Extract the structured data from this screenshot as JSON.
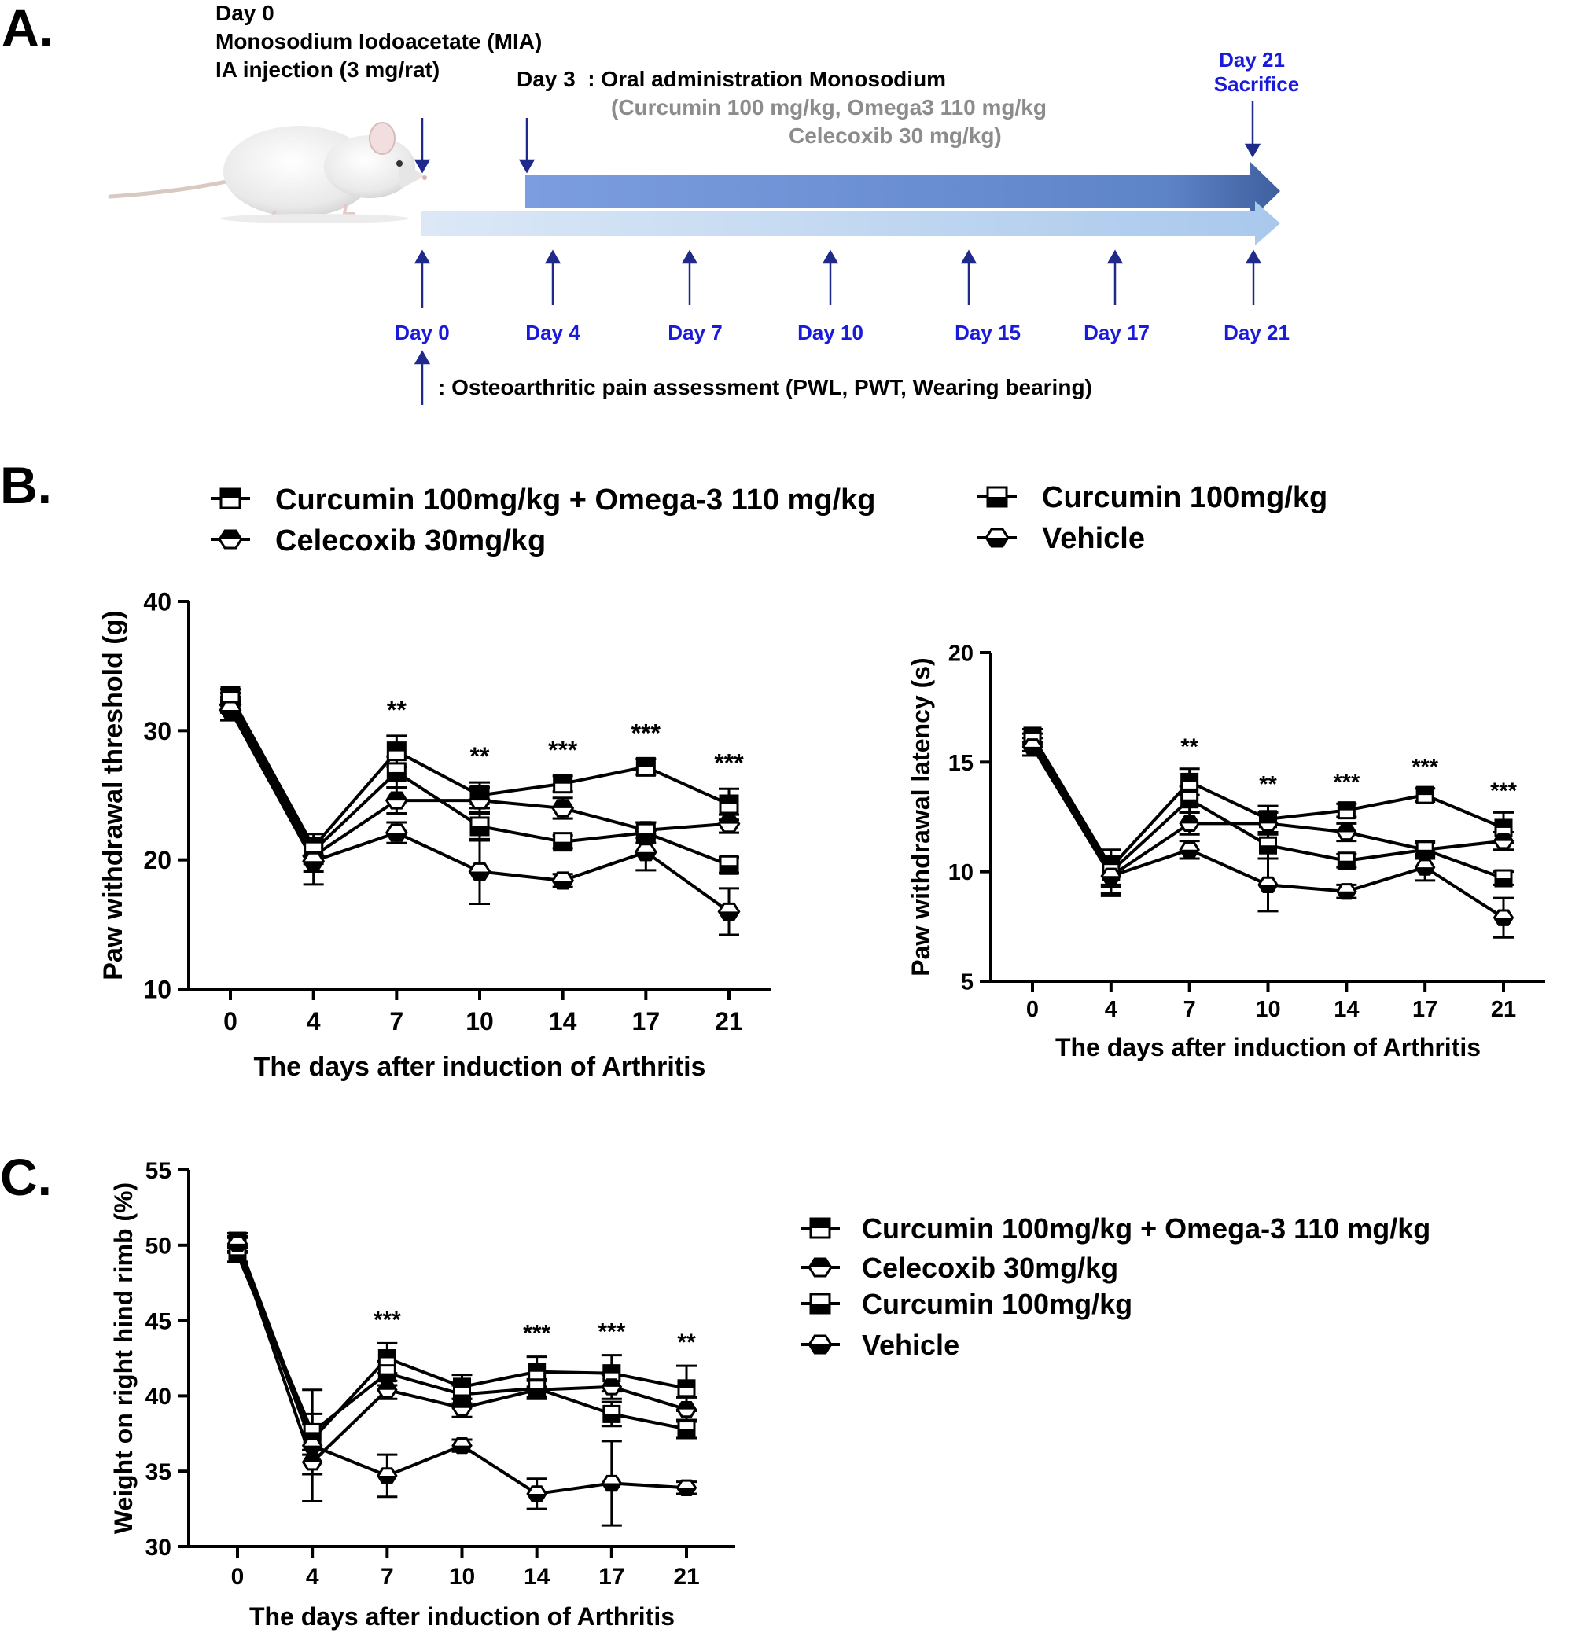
{
  "panel_a": {
    "label": "A.",
    "injection": {
      "line1": "Day 0",
      "line2": "Monosodium Iodoacetate (MIA)",
      "line3": "IA injection (3 mg/rat)"
    },
    "oral": {
      "line1": "Day 3  : Oral administration Monosodium",
      "line2": "(Curcumin 100 mg/kg, Omega3 110 mg/kg",
      "line3": "Celecoxib 30 mg/kg)"
    },
    "sacrifice": {
      "line1": "Day 21",
      "line2": "Sacrifice"
    },
    "timepoints": [
      "Day 0",
      "Day 4",
      "Day 7",
      "Day 10",
      "Day 15",
      "Day 17",
      "Day 21"
    ],
    "assessment_note": ": Osteoarthritic pain assessment (PWL, PWT, Wearing bearing)",
    "colors": {
      "blue_text": "#1a1adb",
      "gray_text": "#8c8c8c",
      "arrow_dark": "#5e84c8",
      "arrow_light": "#bcd4ee",
      "marker_arrow": "#1f2a8a"
    }
  },
  "panel_b": {
    "label": "B.",
    "legend": [
      "Curcumin 100mg/kg + Omega-3 110 mg/kg",
      "Celecoxib 30mg/kg",
      "Curcumin 100mg/kg",
      "Vehicle"
    ]
  },
  "panel_c": {
    "label": "C.",
    "legend": [
      "Curcumin 100mg/kg + Omega-3 110 mg/kg",
      "Celecoxib 30mg/kg",
      "Curcumin 100mg/kg",
      "Vehicle"
    ]
  },
  "chart_data": [
    {
      "id": "pwt",
      "type": "line",
      "title": "",
      "xlabel": "The days after induction of Arthritis",
      "ylabel": "Paw withdrawal threshold (g)",
      "categories": [
        "0",
        "4",
        "7",
        "10",
        "14",
        "17",
        "21"
      ],
      "ylim": [
        10,
        40
      ],
      "yticks": [
        10,
        20,
        30,
        40
      ],
      "series": [
        {
          "name": "Curcumin 100mg/kg + Omega-3 110 mg/kg",
          "marker": "square-top-filled",
          "values": [
            32.7,
            21.0,
            28.4,
            25.0,
            25.9,
            27.2,
            24.3
          ],
          "errors": [
            0.5,
            1.0,
            1.2,
            1.0,
            0.6,
            0.6,
            1.2
          ]
        },
        {
          "name": "Celecoxib 30mg/kg",
          "marker": "hexagon-top-filled",
          "values": [
            32.0,
            20.3,
            24.6,
            24.6,
            24.0,
            22.3,
            22.8
          ],
          "errors": [
            0.6,
            1.2,
            1.0,
            1.0,
            0.8,
            0.6,
            0.7
          ]
        },
        {
          "name": "Curcumin 100mg/kg",
          "marker": "square-bottom-filled",
          "values": [
            32.3,
            20.7,
            26.8,
            22.6,
            21.4,
            22.1,
            19.6
          ],
          "errors": [
            0.6,
            1.0,
            1.2,
            1.1,
            0.5,
            0.8,
            0.6
          ]
        },
        {
          "name": "Vehicle",
          "marker": "hexagon-bottom-filled",
          "values": [
            31.6,
            19.9,
            22.1,
            19.1,
            18.4,
            20.6,
            16.0
          ],
          "errors": [
            0.8,
            1.8,
            0.8,
            2.5,
            0.5,
            1.4,
            1.8
          ]
        }
      ],
      "annotations": [
        {
          "x": "7",
          "text": "**"
        },
        {
          "x": "10",
          "text": "**"
        },
        {
          "x": "14",
          "text": "***"
        },
        {
          "x": "17",
          "text": "***"
        },
        {
          "x": "21",
          "text": "***"
        }
      ]
    },
    {
      "id": "pwl",
      "type": "line",
      "title": "",
      "xlabel": "The days after induction of Arthritis",
      "ylabel": "Paw withdrawal latency (s)",
      "categories": [
        "0",
        "4",
        "7",
        "10",
        "14",
        "17",
        "21"
      ],
      "ylim": [
        5,
        20
      ],
      "yticks": [
        5,
        10,
        15,
        20
      ],
      "series": [
        {
          "name": "Curcumin 100mg/kg + Omega-3 110 mg/kg",
          "marker": "square-top-filled",
          "values": [
            16.2,
            10.2,
            14.1,
            12.4,
            12.8,
            13.5,
            12.0
          ],
          "errors": [
            0.3,
            0.8,
            0.6,
            0.6,
            0.3,
            0.3,
            0.7
          ]
        },
        {
          "name": "Celecoxib 30mg/kg",
          "marker": "hexagon-top-filled",
          "values": [
            15.8,
            9.8,
            12.2,
            12.2,
            11.8,
            11.0,
            11.4
          ],
          "errors": [
            0.3,
            0.8,
            0.5,
            0.5,
            0.4,
            0.3,
            0.4
          ]
        },
        {
          "name": "Curcumin 100mg/kg",
          "marker": "square-bottom-filled",
          "values": [
            16.0,
            10.0,
            13.3,
            11.2,
            10.5,
            11.0,
            9.7
          ],
          "errors": [
            0.3,
            0.7,
            0.6,
            0.6,
            0.3,
            0.4,
            0.3
          ]
        },
        {
          "name": "Vehicle",
          "marker": "hexagon-bottom-filled",
          "values": [
            15.7,
            9.8,
            11.0,
            9.4,
            9.1,
            10.2,
            7.9
          ],
          "errors": [
            0.4,
            0.9,
            0.4,
            1.2,
            0.3,
            0.6,
            0.9
          ]
        }
      ],
      "annotations": [
        {
          "x": "7",
          "text": "**"
        },
        {
          "x": "10",
          "text": "**"
        },
        {
          "x": "14",
          "text": "***"
        },
        {
          "x": "17",
          "text": "***"
        },
        {
          "x": "21",
          "text": "***"
        }
      ]
    },
    {
      "id": "wb",
      "type": "line",
      "title": "",
      "xlabel": "The days after induction of Arthritis",
      "ylabel": "Weight on right hind rimb (%)",
      "categories": [
        "0",
        "4",
        "7",
        "10",
        "14",
        "17",
        "21"
      ],
      "ylim": [
        30,
        55
      ],
      "yticks": [
        30,
        35,
        40,
        45,
        50,
        55
      ],
      "series": [
        {
          "name": "Curcumin 100mg/kg + Omega-3 110 mg/kg",
          "marker": "square-top-filled",
          "values": [
            50.3,
            37.1,
            42.5,
            40.6,
            41.6,
            41.5,
            40.5
          ],
          "errors": [
            0.5,
            1.0,
            1.0,
            0.8,
            1.0,
            1.2,
            1.5
          ]
        },
        {
          "name": "Celecoxib 30mg/kg",
          "marker": "hexagon-top-filled",
          "values": [
            50.0,
            35.6,
            40.4,
            39.2,
            40.4,
            40.6,
            39.1
          ],
          "errors": [
            0.5,
            0.8,
            0.6,
            0.6,
            0.6,
            0.8,
            0.8
          ]
        },
        {
          "name": "Curcumin 100mg/kg",
          "marker": "square-bottom-filled",
          "values": [
            49.4,
            37.6,
            41.5,
            40.1,
            40.5,
            38.8,
            37.8
          ],
          "errors": [
            0.5,
            1.2,
            0.8,
            0.6,
            0.6,
            0.8,
            0.6
          ]
        },
        {
          "name": "Vehicle",
          "marker": "hexagon-bottom-filled",
          "values": [
            50.1,
            36.7,
            34.7,
            36.7,
            33.5,
            34.2,
            33.9
          ],
          "errors": [
            0.5,
            3.7,
            1.4,
            0.4,
            1.0,
            2.8,
            0.4
          ]
        }
      ],
      "annotations": [
        {
          "x": "7",
          "text": "***"
        },
        {
          "x": "14",
          "text": "***"
        },
        {
          "x": "17",
          "text": "***"
        },
        {
          "x": "21",
          "text": "**"
        }
      ]
    }
  ]
}
